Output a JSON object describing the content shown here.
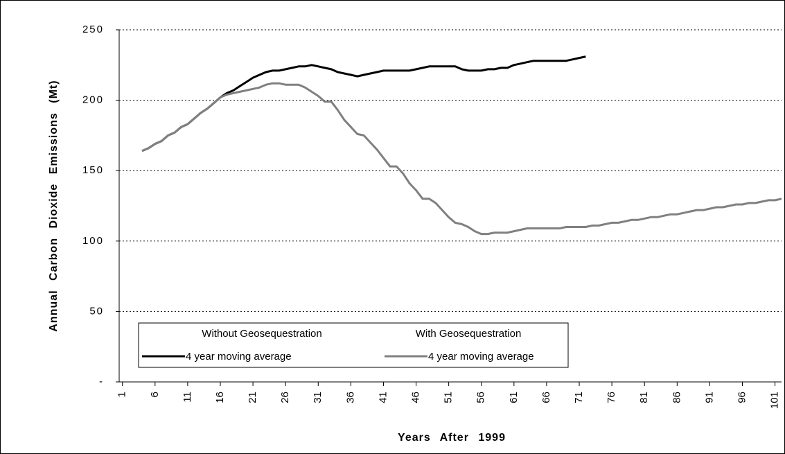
{
  "chart_data": {
    "type": "line",
    "y_label": "Annual Carbon Dioxide Emissions (Mt)",
    "x_label": "Years After 1999",
    "xlim": [
      0.5,
      102
    ],
    "ylim": [
      0,
      250
    ],
    "xticks": [
      1,
      6,
      11,
      16,
      21,
      26,
      31,
      36,
      41,
      46,
      51,
      56,
      61,
      66,
      71,
      76,
      81,
      86,
      91,
      96,
      101
    ],
    "yticks": [
      {
        "value": 0,
        "label": "-"
      },
      50,
      100,
      150,
      200,
      250
    ],
    "grid": true,
    "series": [
      {
        "legend_title": "Without Geosequestration",
        "name": "4 year moving average",
        "color": "#000000",
        "x": [
          4,
          5,
          6,
          7,
          8,
          9,
          10,
          11,
          12,
          13,
          14,
          15,
          16,
          17,
          18,
          19,
          20,
          21,
          22,
          23,
          24,
          25,
          26,
          27,
          28,
          29,
          30,
          31,
          32,
          33,
          34,
          35,
          36,
          37,
          38,
          39,
          40,
          41,
          42,
          43,
          44,
          45,
          46,
          47,
          48,
          49,
          50,
          51,
          52,
          53,
          54,
          55,
          56,
          57,
          58,
          59,
          60,
          61,
          62,
          63,
          64,
          65,
          66,
          67,
          68,
          69,
          70,
          71,
          72
        ],
        "values": [
          164,
          166,
          169,
          171,
          175,
          177,
          181,
          183,
          187,
          191,
          194,
          198,
          202,
          205,
          207,
          210,
          213,
          216,
          218,
          220,
          221,
          221,
          222,
          223,
          224,
          224,
          225,
          224,
          223,
          222,
          220,
          219,
          218,
          217,
          218,
          219,
          220,
          221,
          221,
          221,
          221,
          221,
          222,
          223,
          224,
          224,
          224,
          224,
          224,
          222,
          221,
          221,
          221,
          222,
          222,
          223,
          223,
          225,
          226,
          227,
          228,
          228,
          228,
          228,
          228,
          228,
          229,
          230,
          231
        ]
      },
      {
        "legend_title": "With Geosequestration",
        "name": "4 year moving average",
        "color": "#808080",
        "x": [
          4,
          5,
          6,
          7,
          8,
          9,
          10,
          11,
          12,
          13,
          14,
          15,
          16,
          17,
          18,
          19,
          20,
          21,
          22,
          23,
          24,
          25,
          26,
          27,
          28,
          29,
          30,
          31,
          32,
          33,
          34,
          35,
          36,
          37,
          38,
          39,
          40,
          41,
          42,
          43,
          44,
          45,
          46,
          47,
          48,
          49,
          50,
          51,
          52,
          53,
          54,
          55,
          56,
          57,
          58,
          59,
          60,
          61,
          62,
          63,
          64,
          65,
          66,
          67,
          68,
          69,
          70,
          71,
          72,
          73,
          74,
          75,
          76,
          77,
          78,
          79,
          80,
          81,
          82,
          83,
          84,
          85,
          86,
          87,
          88,
          89,
          90,
          91,
          92,
          93,
          94,
          95,
          96,
          97,
          98,
          99,
          100,
          101,
          102
        ],
        "values": [
          164,
          166,
          169,
          171,
          175,
          177,
          181,
          183,
          187,
          191,
          194,
          198,
          202,
          204,
          205,
          206,
          207,
          208,
          209,
          211,
          212,
          212,
          211,
          211,
          211,
          209,
          206,
          203,
          199,
          199,
          193,
          186,
          181,
          176,
          175,
          170,
          165,
          159,
          153,
          153,
          148,
          141,
          136,
          130,
          130,
          127,
          122,
          117,
          113,
          112,
          110,
          107,
          105,
          105,
          106,
          106,
          106,
          107,
          108,
          109,
          109,
          109,
          109,
          109,
          109,
          110,
          110,
          110,
          110,
          111,
          111,
          112,
          113,
          113,
          114,
          115,
          115,
          116,
          117,
          117,
          118,
          119,
          119,
          120,
          121,
          122,
          122,
          123,
          124,
          124,
          125,
          126,
          126,
          127,
          127,
          128,
          129,
          129,
          130
        ]
      }
    ]
  }
}
